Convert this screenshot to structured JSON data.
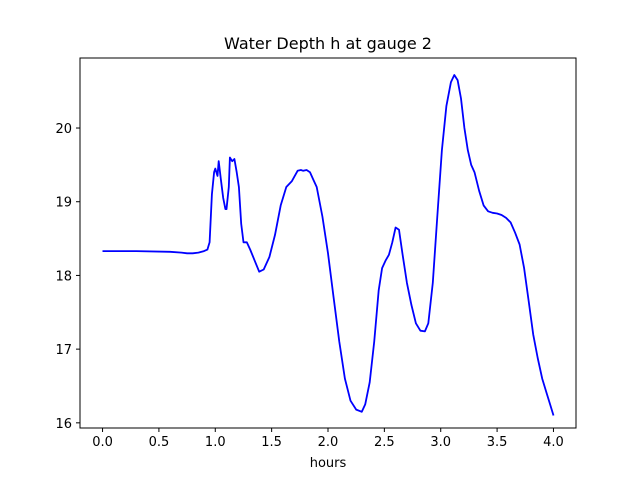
{
  "chart_data": {
    "type": "line",
    "title": "Water Depth h at gauge 2",
    "xlabel": "hours",
    "ylabel": "",
    "xlim": [
      -0.2,
      4.2
    ],
    "ylim": [
      15.93,
      20.95
    ],
    "xticks": [
      0.0,
      0.5,
      1.0,
      1.5,
      2.0,
      2.5,
      3.0,
      3.5,
      4.0
    ],
    "xtick_labels": [
      "0.0",
      "0.5",
      "1.0",
      "1.5",
      "2.0",
      "2.5",
      "3.0",
      "3.5",
      "4.0"
    ],
    "yticks": [
      16,
      17,
      18,
      19,
      20
    ],
    "ytick_labels": [
      "16",
      "17",
      "18",
      "19",
      "20"
    ],
    "grid": false,
    "series": [
      {
        "color": "#0000ff",
        "x": [
          0.0,
          0.3,
          0.6,
          0.7,
          0.75,
          0.8,
          0.85,
          0.9,
          0.93,
          0.95,
          0.97,
          0.99,
          1.0,
          1.02,
          1.03,
          1.05,
          1.07,
          1.09,
          1.1,
          1.12,
          1.13,
          1.15,
          1.17,
          1.19,
          1.21,
          1.23,
          1.25,
          1.28,
          1.31,
          1.35,
          1.39,
          1.43,
          1.48,
          1.53,
          1.58,
          1.63,
          1.68,
          1.73,
          1.76,
          1.78,
          1.81,
          1.84,
          1.87,
          1.9,
          1.95,
          2.0,
          2.05,
          2.1,
          2.15,
          2.2,
          2.25,
          2.3,
          2.33,
          2.37,
          2.41,
          2.45,
          2.48,
          2.51,
          2.54,
          2.57,
          2.6,
          2.63,
          2.66,
          2.7,
          2.74,
          2.78,
          2.82,
          2.86,
          2.89,
          2.93,
          2.97,
          3.01,
          3.05,
          3.09,
          3.12,
          3.15,
          3.18,
          3.21,
          3.24,
          3.27,
          3.3,
          3.34,
          3.38,
          3.42,
          3.46,
          3.5,
          3.54,
          3.58,
          3.62,
          3.66,
          3.7,
          3.74,
          3.78,
          3.82,
          3.86,
          3.9,
          3.94,
          3.97,
          4.0
        ],
        "y": [
          18.33,
          18.33,
          18.32,
          18.31,
          18.3,
          18.3,
          18.31,
          18.33,
          18.35,
          18.45,
          19.1,
          19.4,
          19.45,
          19.35,
          19.55,
          19.3,
          19.05,
          18.9,
          18.9,
          19.2,
          19.6,
          19.55,
          19.58,
          19.4,
          19.2,
          18.7,
          18.45,
          18.45,
          18.35,
          18.2,
          18.05,
          18.08,
          18.25,
          18.55,
          18.95,
          19.2,
          19.28,
          19.42,
          19.43,
          19.42,
          19.43,
          19.4,
          19.3,
          19.2,
          18.8,
          18.3,
          17.7,
          17.1,
          16.6,
          16.3,
          16.18,
          16.15,
          16.25,
          16.55,
          17.1,
          17.8,
          18.1,
          18.2,
          18.28,
          18.45,
          18.65,
          18.62,
          18.3,
          17.9,
          17.6,
          17.35,
          17.25,
          17.24,
          17.35,
          17.9,
          18.8,
          19.7,
          20.3,
          20.62,
          20.72,
          20.65,
          20.4,
          20.0,
          19.7,
          19.5,
          19.4,
          19.15,
          18.95,
          18.87,
          18.85,
          18.84,
          18.82,
          18.78,
          18.72,
          18.58,
          18.42,
          18.1,
          17.65,
          17.2,
          16.88,
          16.6,
          16.4,
          16.25,
          16.1
        ]
      }
    ]
  }
}
